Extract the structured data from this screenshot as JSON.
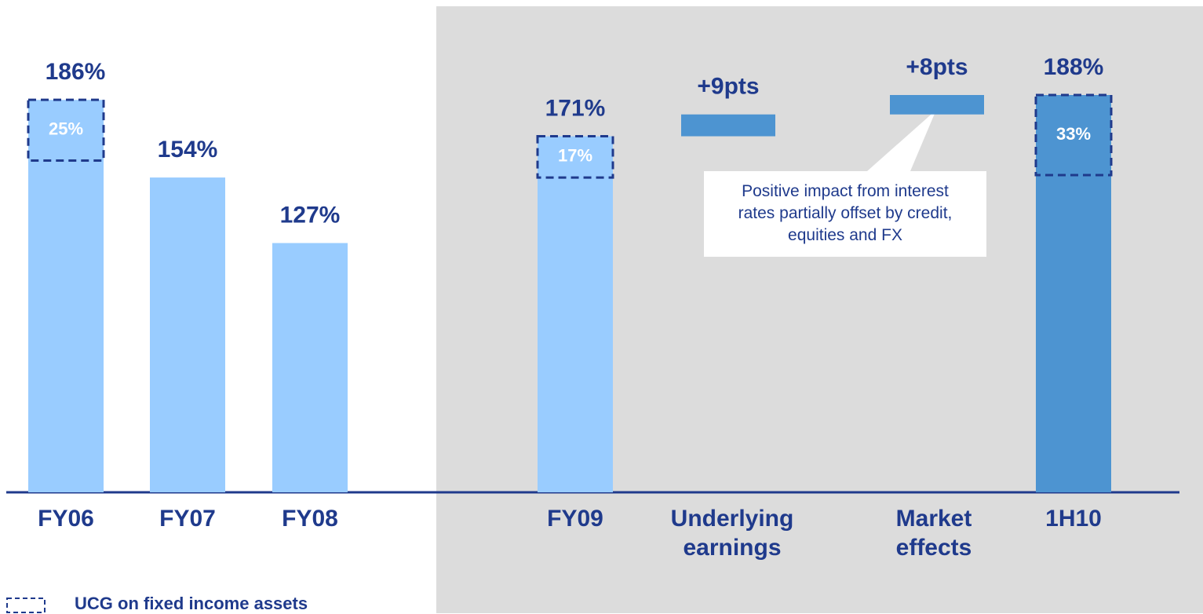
{
  "chart_data": {
    "type": "waterfall",
    "categories": [
      "FY06",
      "FY07",
      "FY08",
      "FY09",
      "Underlying earnings",
      "Market effects",
      "1H10"
    ],
    "values": [
      186,
      154,
      127,
      171,
      9,
      8,
      188
    ],
    "value_labels": [
      "186%",
      "154%",
      "127%",
      "171%",
      "+9pts",
      "+8pts",
      "188%"
    ],
    "measure": [
      "absolute",
      "absolute",
      "absolute",
      "absolute",
      "relative",
      "relative",
      "absolute"
    ],
    "colors": [
      "#99ccff",
      "#99ccff",
      "#99ccff",
      "#99ccff",
      "#4d94d1",
      "#4d94d1",
      "#4d94d1"
    ],
    "ucg": {
      "name": "UCG on fixed income assets",
      "color": "#1f3a8c",
      "values": [
        25,
        null,
        null,
        17,
        null,
        null,
        33
      ],
      "value_labels": [
        "25%",
        null,
        null,
        "17%",
        null,
        null,
        "33%"
      ]
    },
    "ylim": [
      24.3,
      210
    ],
    "annotation": "Positive impact from interest rates partially offset by credit, equities and FX"
  }
}
